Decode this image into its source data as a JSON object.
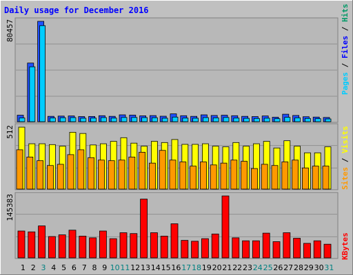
{
  "chart_data": {
    "type": "bar",
    "title": "Daily usage for December 2016",
    "categories": [
      "1",
      "2",
      "3",
      "4",
      "5",
      "6",
      "7",
      "8",
      "9",
      "10",
      "11",
      "12",
      "13",
      "14",
      "15",
      "16",
      "17",
      "18",
      "19",
      "20",
      "21",
      "22",
      "23",
      "24",
      "25",
      "26",
      "27",
      "28",
      "29",
      "30",
      "31"
    ],
    "weekend_days": [
      "3",
      "10",
      "11",
      "17",
      "18",
      "24",
      "25",
      "31"
    ],
    "panels": [
      {
        "id": "top",
        "ymax_label": "80457",
        "ymax": 80457,
        "series": [
          {
            "name": "Pages",
            "values": [
              5200,
              47000,
              80457,
              4300,
              4500,
              4600,
              4100,
              4200,
              4800,
              4300,
              5500,
              5300,
              4700,
              4900,
              4400,
              6300,
              4800,
              4300,
              5500,
              5000,
              5200,
              4800,
              4300,
              4100,
              4600,
              3600,
              6000,
              5000,
              4000,
              3700,
              3400
            ]
          },
          {
            "name": "Files",
            "values": [
              3000,
              44000,
              77000,
              3000,
              3200,
              3300,
              2800,
              2900,
              3300,
              2900,
              3400,
              3400,
              3300,
              3200,
              2800,
              3700,
              2900,
              2800,
              3300,
              3100,
              3400,
              2900,
              2700,
              2600,
              2800,
              2400,
              3500,
              3100,
              2600,
              2400,
              2200
            ]
          }
        ],
        "legend": [
          "Pages",
          "Files",
          "Hits"
        ],
        "legend_colors": [
          "#00ccff",
          "#0000ff",
          "#009966"
        ]
      },
      {
        "id": "mid",
        "ymax_label": "512",
        "ymax": 512,
        "series": [
          {
            "name": "Visits",
            "values": [
              512,
              375,
              375,
              368,
              355,
              470,
              460,
              365,
              375,
              395,
              425,
              380,
              355,
              395,
              385,
              410,
              370,
              370,
              375,
              355,
              350,
              385,
              355,
              375,
              395,
              340,
              400,
              355,
              300,
              300,
              350
            ]
          },
          {
            "name": "Sites",
            "values": [
              325,
              265,
              235,
              195,
              205,
              285,
              325,
              260,
              240,
              235,
              240,
              265,
              305,
              215,
              320,
              240,
              225,
              190,
              225,
              200,
              215,
              240,
              230,
              170,
              205,
              195,
              225,
              240,
              175,
              190,
              190
            ]
          }
        ],
        "legend": [
          "Sites",
          "Visits"
        ],
        "legend_colors": [
          "#ff9900",
          "#ffff00"
        ]
      },
      {
        "id": "bot",
        "ymax_label": "145383",
        "ymax": 145383,
        "series": [
          {
            "name": "KBytes",
            "values": [
              63000,
              61000,
              75000,
              50000,
              54000,
              65000,
              51000,
              47000,
              63000,
              45000,
              59000,
              57000,
              138000,
              59000,
              51000,
              80000,
              41000,
              39000,
              45000,
              56000,
              145383,
              47000,
              40000,
              40000,
              58000,
              38000,
              59000,
              46000,
              34000,
              40000,
              32000
            ]
          }
        ],
        "legend": [
          "KBytes"
        ],
        "legend_colors": [
          "#ff0000"
        ]
      }
    ],
    "colors": {
      "background": "#c0c0c0",
      "panel": "#b8b8b8",
      "border": "#808080",
      "title": "#0000ff",
      "weekend_label": "#008080",
      "weekday_label": "#000000",
      "pages": "#00ccff",
      "files": "#2050ff",
      "visits": "#ffff00",
      "sites": "#ff9900",
      "kbytes": "#ff0000"
    }
  }
}
